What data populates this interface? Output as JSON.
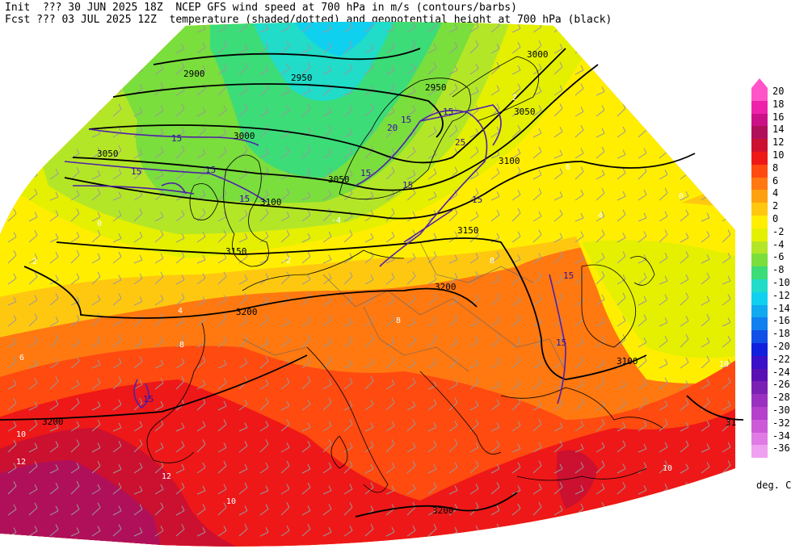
{
  "header": {
    "line1": "Init  ??? 30 JUN 2025 18Z  NCEP GFS wind speed at 700 hPa in m/s (contours/barbs)",
    "line2": "Fcst ??? 03 JUL 2025 12Z  temperature (shaded/dotted) and geopotential height at 700 hPa (black)"
  },
  "colorbar": {
    "units": "deg. C",
    "levels": [
      {
        "label": "20",
        "color": "#ff55c8"
      },
      {
        "label": "18",
        "color": "#ee22aa"
      },
      {
        "label": "16",
        "color": "#cc1188"
      },
      {
        "label": "14",
        "color": "#b0105a"
      },
      {
        "label": "12",
        "color": "#cc1030"
      },
      {
        "label": "10",
        "color": "#ee1818"
      },
      {
        "label": "8",
        "color": "#ff4a10"
      },
      {
        "label": "6",
        "color": "#ff7810"
      },
      {
        "label": "4",
        "color": "#ffa010"
      },
      {
        "label": "2",
        "color": "#ffc810"
      },
      {
        "label": "0",
        "color": "#ffee00"
      },
      {
        "label": "-2",
        "color": "#e4f000"
      },
      {
        "label": "-4",
        "color": "#b4e628"
      },
      {
        "label": "-6",
        "color": "#7ade3c"
      },
      {
        "label": "-8",
        "color": "#3cdc78"
      },
      {
        "label": "-10",
        "color": "#20dcc8"
      },
      {
        "label": "-12",
        "color": "#10d0f0"
      },
      {
        "label": "-14",
        "color": "#10aaf0"
      },
      {
        "label": "-16",
        "color": "#1080f0"
      },
      {
        "label": "-18",
        "color": "#1050e6"
      },
      {
        "label": "-20",
        "color": "#1020dc"
      },
      {
        "label": "-22",
        "color": "#3a10c8"
      },
      {
        "label": "-24",
        "color": "#5a10b4"
      },
      {
        "label": "-26",
        "color": "#7a20b4"
      },
      {
        "label": "-28",
        "color": "#9a30c0"
      },
      {
        "label": "-30",
        "color": "#b440cc"
      },
      {
        "label": "-32",
        "color": "#cc5ad8"
      },
      {
        "label": "-34",
        "color": "#e07ae4"
      },
      {
        "label": "-36",
        "color": "#f0a0f0"
      }
    ]
  },
  "height_labels": [
    "2900",
    "2950",
    "2950",
    "3000",
    "3000",
    "3050",
    "3050",
    "3050",
    "3100",
    "3100",
    "3100",
    "3150",
    "3150",
    "3200",
    "3200",
    "3200",
    "3200",
    "3100",
    "31"
  ],
  "wind_labels": [
    "15",
    "15",
    "15",
    "15",
    "15",
    "15",
    "20",
    "25",
    "15",
    "15",
    "15",
    "15",
    "15",
    "15"
  ],
  "temp_labels": [
    "0",
    "2",
    "-2",
    "4",
    "-4",
    "6",
    "8",
    "10",
    "12",
    "12",
    "10",
    "10",
    "10",
    "8",
    "8",
    "6",
    "4",
    "2",
    "0"
  ]
}
